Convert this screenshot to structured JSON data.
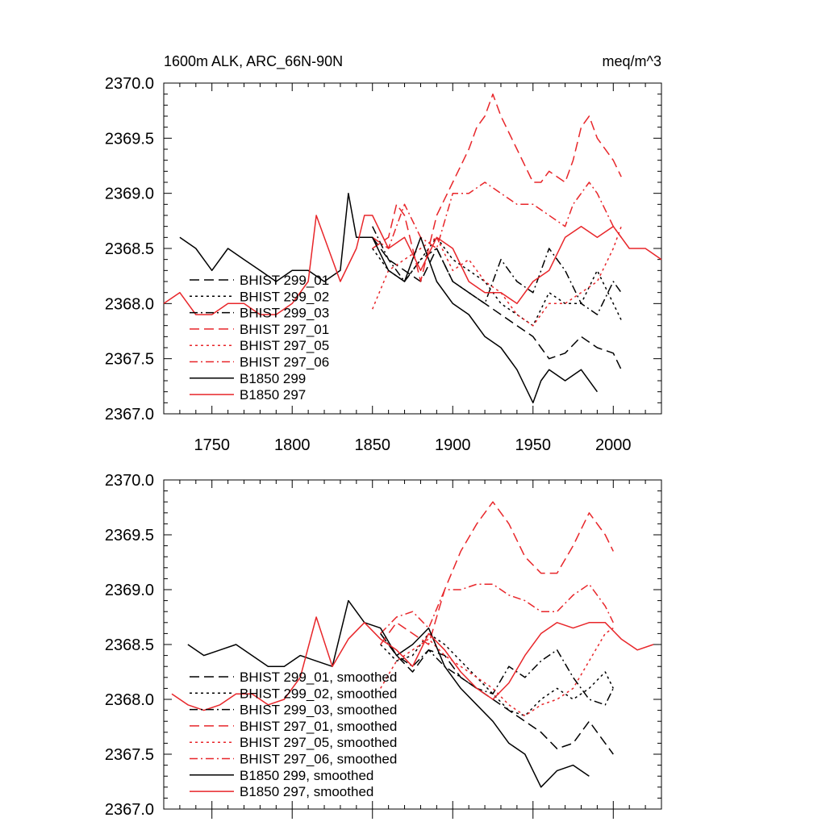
{
  "chart_data": [
    {
      "type": "line",
      "title": "1600m ALK, ARC_66N-90N",
      "units": "meq/m^3",
      "xlim": [
        1720,
        2030
      ],
      "ylim": [
        2367.0,
        2370.0
      ],
      "xticks": [
        1750,
        1800,
        1850,
        1900,
        1950,
        2000
      ],
      "xtick_labels": [
        "1750",
        "1800",
        "1850",
        "1900",
        "1950",
        "2000"
      ],
      "yticks": [
        2367.0,
        2367.5,
        2368.0,
        2368.5,
        2369.0,
        2369.5,
        2370.0
      ],
      "ytick_labels": [
        "2367.0",
        "2367.5",
        "2368.0",
        "2368.5",
        "2369.0",
        "2369.5",
        "2370.0"
      ],
      "legend_position": "bottom-left",
      "grid": false,
      "series": [
        {
          "name": "BHIST 299_01",
          "color": "#000000",
          "dash": "long-dash",
          "x": [
            1850,
            1860,
            1870,
            1880,
            1890,
            1900,
            1910,
            1920,
            1930,
            1940,
            1950,
            1955,
            1960,
            1970,
            1980,
            1990,
            2000,
            2005
          ],
          "y": [
            2368.6,
            2368.4,
            2368.3,
            2368.2,
            2368.5,
            2368.2,
            2368.1,
            2368.0,
            2367.9,
            2367.8,
            2367.7,
            2367.6,
            2367.5,
            2367.55,
            2367.7,
            2367.6,
            2367.55,
            2367.4
          ]
        },
        {
          "name": "BHIST 299_02",
          "color": "#000000",
          "dash": "short-dash",
          "x": [
            1850,
            1860,
            1870,
            1880,
            1890,
            1900,
            1910,
            1920,
            1930,
            1940,
            1950,
            1960,
            1970,
            1980,
            1990,
            2000,
            2005
          ],
          "y": [
            2368.5,
            2368.3,
            2368.2,
            2368.4,
            2368.6,
            2368.4,
            2368.3,
            2368.2,
            2368.0,
            2367.9,
            2367.8,
            2368.1,
            2368.0,
            2368.0,
            2368.3,
            2368.0,
            2367.85
          ]
        },
        {
          "name": "BHIST 299_03",
          "color": "#000000",
          "dash": "dash-dot",
          "x": [
            1850,
            1860,
            1870,
            1880,
            1890,
            1900,
            1910,
            1920,
            1930,
            1940,
            1950,
            1960,
            1970,
            1980,
            1990,
            2000,
            2005
          ],
          "y": [
            2368.7,
            2368.4,
            2368.2,
            2368.4,
            2368.5,
            2368.2,
            2368.1,
            2368.0,
            2368.4,
            2368.2,
            2368.1,
            2368.5,
            2368.3,
            2368.0,
            2367.9,
            2368.2,
            2368.1
          ]
        },
        {
          "name": "BHIST 297_01",
          "color": "#e8262a",
          "dash": "long-dash",
          "x": [
            1850,
            1860,
            1865,
            1870,
            1880,
            1885,
            1890,
            1900,
            1910,
            1915,
            1920,
            1925,
            1930,
            1940,
            1950,
            1955,
            1960,
            1970,
            1975,
            1980,
            1985,
            1990,
            2000,
            2005
          ],
          "y": [
            2368.5,
            2368.6,
            2368.9,
            2368.8,
            2368.2,
            2368.5,
            2368.8,
            2369.1,
            2369.4,
            2369.6,
            2369.7,
            2369.9,
            2369.7,
            2369.4,
            2369.1,
            2369.1,
            2369.2,
            2369.1,
            2369.3,
            2369.6,
            2369.7,
            2369.5,
            2369.3,
            2369.15
          ]
        },
        {
          "name": "BHIST 297_05",
          "color": "#e8262a",
          "dash": "short-dash",
          "x": [
            1850,
            1860,
            1870,
            1880,
            1890,
            1900,
            1910,
            1920,
            1930,
            1940,
            1950,
            1960,
            1970,
            1980,
            1990,
            2000,
            2005
          ],
          "y": [
            2367.95,
            2368.3,
            2368.4,
            2368.5,
            2368.6,
            2368.3,
            2368.4,
            2368.2,
            2368.1,
            2367.9,
            2367.8,
            2368.0,
            2368.0,
            2368.1,
            2368.2,
            2368.5,
            2368.7
          ]
        },
        {
          "name": "BHIST 297_06",
          "color": "#e8262a",
          "dash": "dash-dot",
          "x": [
            1850,
            1860,
            1870,
            1880,
            1890,
            1900,
            1910,
            1920,
            1930,
            1940,
            1950,
            1960,
            1970,
            1975,
            1980,
            1985,
            1990,
            2000,
            2005
          ],
          "y": [
            2368.6,
            2368.5,
            2368.9,
            2368.6,
            2368.5,
            2369.0,
            2369.0,
            2369.1,
            2369.0,
            2368.9,
            2368.9,
            2368.8,
            2368.7,
            2368.9,
            2369.0,
            2369.1,
            2369.0,
            2368.7,
            2368.6
          ]
        },
        {
          "name": "B1850 299",
          "color": "#000000",
          "dash": "solid",
          "x": [
            1730,
            1740,
            1750,
            1760,
            1770,
            1780,
            1790,
            1800,
            1810,
            1820,
            1830,
            1835,
            1840,
            1850,
            1860,
            1870,
            1880,
            1890,
            1900,
            1910,
            1920,
            1930,
            1940,
            1950,
            1955,
            1960,
            1970,
            1980,
            1990
          ],
          "y": [
            2368.6,
            2368.5,
            2368.3,
            2368.5,
            2368.4,
            2368.3,
            2368.2,
            2368.3,
            2368.3,
            2368.2,
            2368.3,
            2369.0,
            2368.6,
            2368.6,
            2368.3,
            2368.2,
            2368.6,
            2368.2,
            2368.0,
            2367.9,
            2367.7,
            2367.6,
            2367.4,
            2367.1,
            2367.3,
            2367.4,
            2367.3,
            2367.4,
            2367.2
          ]
        },
        {
          "name": "B1850 297",
          "color": "#e8262a",
          "dash": "solid",
          "x": [
            1720,
            1730,
            1740,
            1750,
            1760,
            1770,
            1780,
            1790,
            1800,
            1810,
            1815,
            1820,
            1830,
            1840,
            1845,
            1850,
            1860,
            1870,
            1880,
            1890,
            1900,
            1910,
            1920,
            1930,
            1940,
            1950,
            1960,
            1970,
            1980,
            1990,
            2000,
            2010,
            2020,
            2030
          ],
          "y": [
            2368.0,
            2368.1,
            2367.9,
            2367.9,
            2368.0,
            2368.0,
            2367.9,
            2367.9,
            2368.0,
            2368.2,
            2368.8,
            2368.6,
            2368.2,
            2368.5,
            2368.8,
            2368.8,
            2368.5,
            2368.6,
            2368.3,
            2368.6,
            2368.5,
            2368.2,
            2368.1,
            2368.1,
            2368.0,
            2368.2,
            2368.3,
            2368.6,
            2368.7,
            2368.6,
            2368.7,
            2368.5,
            2368.5,
            2368.4
          ]
        }
      ]
    },
    {
      "type": "line",
      "xlim": [
        1720,
        2030
      ],
      "ylim": [
        2367.0,
        2370.0
      ],
      "yticks": [
        2367.0,
        2367.5,
        2368.0,
        2368.5,
        2369.0,
        2369.5,
        2370.0
      ],
      "ytick_labels": [
        "2367.0",
        "2367.5",
        "2368.0",
        "2368.5",
        "2369.0",
        "2369.5",
        "2370.0"
      ],
      "legend_position": "bottom-left",
      "grid": false,
      "series": [
        {
          "name": "BHIST 299_01, smoothed",
          "color": "#000000",
          "dash": "long-dash",
          "x": [
            1855,
            1865,
            1875,
            1885,
            1895,
            1905,
            1915,
            1925,
            1935,
            1945,
            1955,
            1965,
            1975,
            1985,
            1995,
            2000
          ],
          "y": [
            2368.6,
            2368.4,
            2368.25,
            2368.45,
            2368.4,
            2368.2,
            2368.1,
            2368.0,
            2367.9,
            2367.8,
            2367.7,
            2367.55,
            2367.6,
            2367.8,
            2367.6,
            2367.5
          ]
        },
        {
          "name": "BHIST 299_02, smoothed",
          "color": "#000000",
          "dash": "short-dash",
          "x": [
            1855,
            1865,
            1875,
            1885,
            1895,
            1905,
            1915,
            1925,
            1935,
            1945,
            1955,
            1965,
            1975,
            1985,
            1995,
            2000
          ],
          "y": [
            2368.5,
            2368.35,
            2368.4,
            2368.6,
            2368.5,
            2368.35,
            2368.2,
            2368.05,
            2367.9,
            2367.85,
            2368.0,
            2368.1,
            2368.0,
            2368.1,
            2368.25,
            2368.1
          ]
        },
        {
          "name": "BHIST 299_03, smoothed",
          "color": "#000000",
          "dash": "dash-dot",
          "x": [
            1855,
            1865,
            1875,
            1885,
            1895,
            1905,
            1915,
            1925,
            1935,
            1945,
            1955,
            1965,
            1975,
            1985,
            1995,
            2000
          ],
          "y": [
            2368.6,
            2368.4,
            2368.3,
            2368.45,
            2368.3,
            2368.2,
            2368.1,
            2368.05,
            2368.3,
            2368.2,
            2368.35,
            2368.45,
            2368.2,
            2368.0,
            2367.95,
            2368.1
          ]
        },
        {
          "name": "BHIST 297_01, smoothed",
          "color": "#e8262a",
          "dash": "long-dash",
          "x": [
            1855,
            1865,
            1875,
            1885,
            1895,
            1905,
            1915,
            1925,
            1935,
            1945,
            1955,
            1965,
            1975,
            1985,
            1995,
            2000
          ],
          "y": [
            2368.5,
            2368.7,
            2368.6,
            2368.5,
            2369.0,
            2369.35,
            2369.6,
            2369.8,
            2369.6,
            2369.3,
            2369.15,
            2369.15,
            2369.4,
            2369.7,
            2369.5,
            2369.35
          ]
        },
        {
          "name": "BHIST 297_05, smoothed",
          "color": "#e8262a",
          "dash": "short-dash",
          "x": [
            1855,
            1865,
            1875,
            1885,
            1895,
            1905,
            1915,
            1925,
            1935,
            1945,
            1955,
            1965,
            1975,
            1985,
            1995,
            2000
          ],
          "y": [
            2368.1,
            2368.35,
            2368.45,
            2368.55,
            2368.4,
            2368.3,
            2368.2,
            2368.1,
            2367.95,
            2367.85,
            2367.95,
            2368.0,
            2368.1,
            2368.35,
            2368.6,
            2368.65
          ]
        },
        {
          "name": "BHIST 297_06, smoothed",
          "color": "#e8262a",
          "dash": "dash-dot",
          "x": [
            1855,
            1865,
            1875,
            1885,
            1895,
            1905,
            1915,
            1925,
            1935,
            1945,
            1955,
            1965,
            1975,
            1985,
            1995,
            2000
          ],
          "y": [
            2368.6,
            2368.75,
            2368.8,
            2368.65,
            2369.0,
            2369.0,
            2369.05,
            2369.05,
            2368.95,
            2368.9,
            2368.8,
            2368.8,
            2368.95,
            2369.05,
            2368.85,
            2368.7
          ]
        },
        {
          "name": "B1850 299, smoothed",
          "color": "#000000",
          "dash": "solid",
          "x": [
            1735,
            1745,
            1755,
            1765,
            1775,
            1785,
            1795,
            1805,
            1815,
            1825,
            1835,
            1845,
            1855,
            1865,
            1875,
            1885,
            1895,
            1905,
            1915,
            1925,
            1935,
            1945,
            1955,
            1965,
            1975,
            1985
          ],
          "y": [
            2368.5,
            2368.4,
            2368.45,
            2368.5,
            2368.4,
            2368.3,
            2368.3,
            2368.4,
            2368.35,
            2368.3,
            2368.9,
            2368.7,
            2368.65,
            2368.4,
            2368.5,
            2368.65,
            2368.3,
            2368.1,
            2367.95,
            2367.8,
            2367.6,
            2367.5,
            2367.2,
            2367.35,
            2367.4,
            2367.3
          ]
        },
        {
          "name": "B1850 297, smoothed",
          "color": "#e8262a",
          "dash": "solid",
          "x": [
            1725,
            1735,
            1745,
            1755,
            1765,
            1775,
            1785,
            1795,
            1805,
            1815,
            1825,
            1835,
            1845,
            1855,
            1865,
            1875,
            1885,
            1895,
            1905,
            1915,
            1925,
            1935,
            1945,
            1955,
            1965,
            1975,
            1985,
            1995,
            2005,
            2015,
            2025
          ],
          "y": [
            2368.05,
            2367.95,
            2367.9,
            2367.95,
            2368.05,
            2368.05,
            2367.95,
            2368.0,
            2368.2,
            2368.75,
            2368.3,
            2368.55,
            2368.7,
            2368.55,
            2368.45,
            2368.3,
            2368.6,
            2368.45,
            2368.25,
            2368.1,
            2368.0,
            2368.15,
            2368.4,
            2368.6,
            2368.7,
            2368.65,
            2368.7,
            2368.7,
            2368.55,
            2368.45,
            2368.5
          ]
        }
      ]
    }
  ]
}
